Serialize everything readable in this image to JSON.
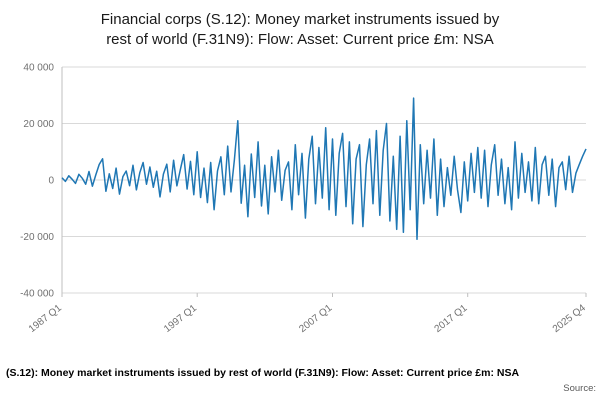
{
  "header": {
    "title_line1": "Financial corps (S.12): Money market instruments issued by",
    "title_line2": "rest of world (F.31N9): Flow: Asset: Current price £m: NSA"
  },
  "footer": {
    "caption": "(S.12): Money market instruments issued by rest of world (F.31N9): Flow: Asset: Current price £m: NSA",
    "source_label": "Source:"
  },
  "chart_data": {
    "type": "line",
    "title": "Financial corps (S.12): Money market instruments issued by rest of world (F.31N9): Flow: Asset: Current price £m: NSA",
    "xlabel": "",
    "ylabel": "",
    "x_start": "1987 Q1",
    "x_end": "2025 Q4",
    "frequency": "quarterly",
    "ylim": [
      -40000,
      40000
    ],
    "grid": true,
    "legend": "none",
    "line_color": "#1f77b4",
    "grid_color": "#d9d9d9",
    "yticks": [
      {
        "value": 40000,
        "label": "40 000"
      },
      {
        "value": 20000,
        "label": "20 000"
      },
      {
        "value": 0,
        "label": "0"
      },
      {
        "value": -20000,
        "label": "-20 000"
      },
      {
        "value": -40000,
        "label": "-40 000"
      }
    ],
    "xticks": [
      {
        "index": 0,
        "label": "1987 Q1"
      },
      {
        "index": 40,
        "label": "1997 Q1"
      },
      {
        "index": 80,
        "label": "2007 Q1"
      },
      {
        "index": 120,
        "label": "2017 Q1"
      },
      {
        "index": 155,
        "label": "2025 Q4"
      }
    ],
    "values": [
      800,
      -500,
      1500,
      300,
      -1200,
      2000,
      600,
      -1500,
      3000,
      -2200,
      1800,
      5500,
      7500,
      -4000,
      2200,
      -3000,
      4200,
      -5000,
      1200,
      3200,
      -2000,
      5200,
      -3500,
      2600,
      6200,
      -1500,
      4600,
      -2600,
      3100,
      -6000,
      2100,
      5600,
      -4200,
      7000,
      -2100,
      3600,
      9000,
      -3200,
      6600,
      -5200,
      10000,
      -6200,
      4200,
      -8000,
      6200,
      -10500,
      3200,
      8200,
      -5200,
      12000,
      -4200,
      7200,
      21000,
      -8200,
      5200,
      -13000,
      9200,
      -6200,
      13500,
      -9200,
      5200,
      -12000,
      8200,
      -4200,
      10500,
      -7200,
      3400,
      6400,
      -10500,
      12500,
      -5200,
      9400,
      -13500,
      7400,
      15500,
      -8400,
      11500,
      -6400,
      18500,
      -10500,
      14500,
      -12500,
      9400,
      16500,
      -9400,
      13500,
      -15500,
      7400,
      12500,
      -16500,
      5400,
      14500,
      -8400,
      17500,
      -12500,
      10500,
      20000,
      -14500,
      8400,
      -17500,
      15500,
      -18500,
      21000,
      -10500,
      29000,
      -21000,
      12500,
      -8400,
      10500,
      -6400,
      14500,
      -12500,
      7400,
      -9400,
      4400,
      -5400,
      8400,
      -3400,
      -11500,
      6400,
      -7400,
      9400,
      -4400,
      11500,
      -6400,
      10500,
      -9400,
      5400,
      12500,
      -5400,
      7400,
      -8400,
      4400,
      -10500,
      13500,
      -6400,
      9400,
      -4400,
      6400,
      -7400,
      11500,
      -8400,
      5400,
      8400,
      -5400,
      7400,
      -9400,
      4400,
      6400,
      -3400,
      8400,
      -4400,
      2400,
      5400,
      8400,
      11000
    ]
  }
}
